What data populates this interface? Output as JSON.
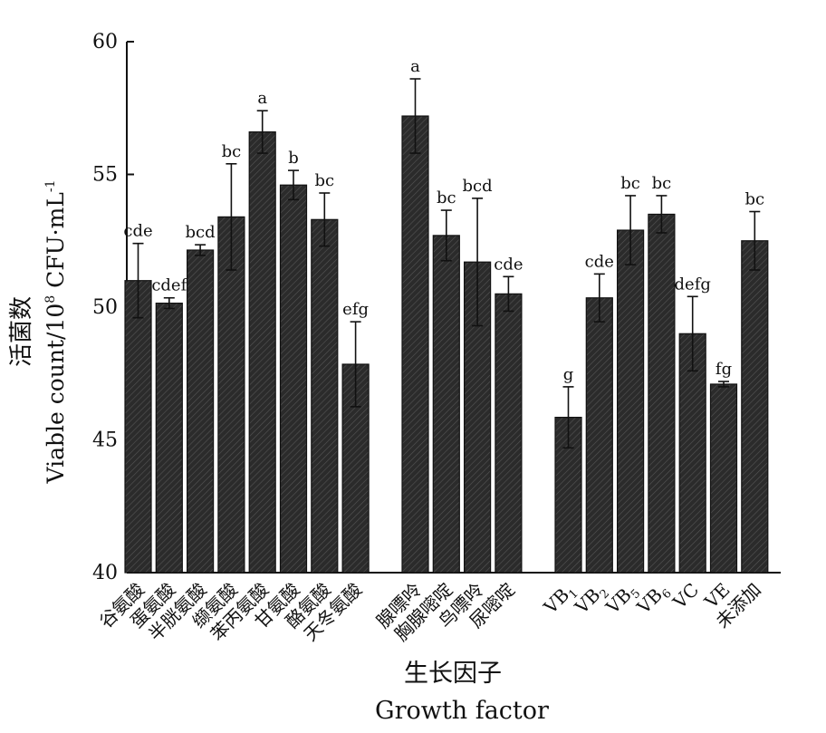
{
  "chart_data": {
    "type": "bar",
    "xlabel_cn": "生长因子",
    "xlabel_en": "Growth factor",
    "ylabel_cn": "活菌数",
    "ylabel_en": "Viable count/10",
    "ylabel_sup_exp": "8",
    "ylabel_unit": " CFU·mL",
    "ylabel_sup_unit": "-1",
    "ylim": [
      40,
      60
    ],
    "yticks": [
      40,
      45,
      50,
      55,
      60
    ],
    "bar_color": "#2b2b2b",
    "groups": [
      {
        "bars": [
          {
            "label": "谷氨酸",
            "value": 51.0,
            "error": 1.4,
            "sig": "cde"
          },
          {
            "label": "蛋氨酸",
            "value": 50.15,
            "error": 0.2,
            "sig": "cdef"
          },
          {
            "label": "半胱氨酸",
            "value": 52.15,
            "error": 0.2,
            "sig": "bcd"
          },
          {
            "label": "缬氨酸",
            "value": 53.4,
            "error": 2.0,
            "sig": "bc"
          },
          {
            "label": "苯丙氨酸",
            "value": 56.6,
            "error": 0.8,
            "sig": "a"
          },
          {
            "label": "甘氨酸",
            "value": 54.6,
            "error": 0.55,
            "sig": "b"
          },
          {
            "label": "酪氨酸",
            "value": 53.3,
            "error": 1.0,
            "sig": "bc"
          },
          {
            "label": "天冬氨酸",
            "value": 47.85,
            "error": 1.6,
            "sig": "efg"
          }
        ]
      },
      {
        "bars": [
          {
            "label": "腺嘌呤",
            "value": 57.2,
            "error": 1.4,
            "sig": "a"
          },
          {
            "label": "胸腺嘧啶",
            "value": 52.7,
            "error": 0.95,
            "sig": "bc"
          },
          {
            "label": "鸟嘌呤",
            "value": 51.7,
            "error": 2.4,
            "sig": "bcd"
          },
          {
            "label": "尿嘧啶",
            "value": 50.5,
            "error": 0.65,
            "sig": "cde"
          }
        ]
      },
      {
        "bars": [
          {
            "label": "VB",
            "sub": "1",
            "value": 45.85,
            "error": 1.15,
            "sig": "g"
          },
          {
            "label": "VB",
            "sub": "2",
            "value": 50.35,
            "error": 0.9,
            "sig": "cde"
          },
          {
            "label": "VB",
            "sub": "5",
            "value": 52.9,
            "error": 1.3,
            "sig": "bc"
          },
          {
            "label": "VB",
            "sub": "6",
            "value": 53.5,
            "error": 0.7,
            "sig": "bc"
          },
          {
            "label": "VC",
            "value": 49.0,
            "error": 1.4,
            "sig": "defg"
          },
          {
            "label": "VE",
            "value": 47.1,
            "error": 0.1,
            "sig": "fg"
          },
          {
            "label": "未添加",
            "value": 52.5,
            "error": 1.1,
            "sig": "bc"
          }
        ]
      }
    ]
  }
}
